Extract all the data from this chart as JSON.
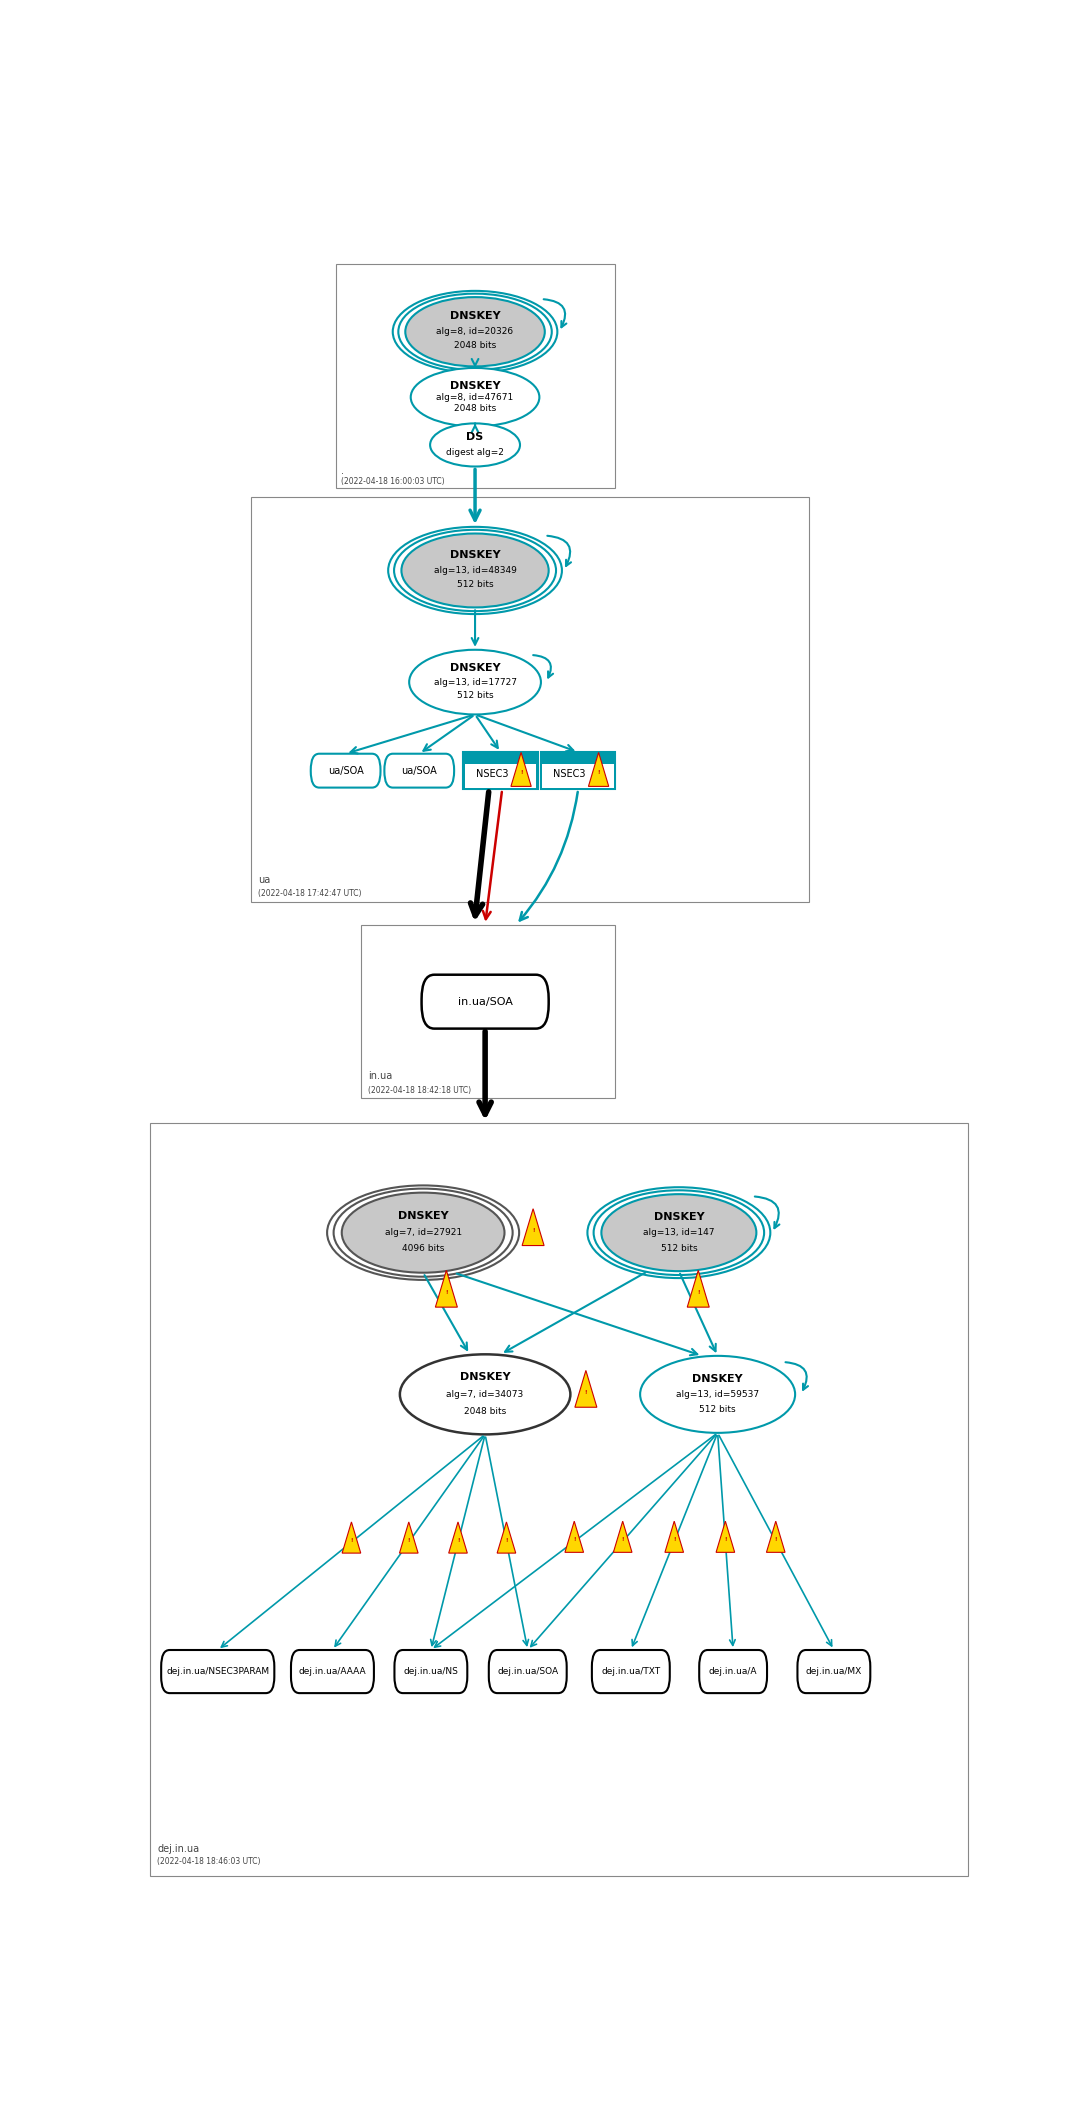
{
  "fig_width": 10.91,
  "fig_height": 21.23,
  "dpi": 100,
  "bg_color": "#ffffff",
  "teal": "#0099AA",
  "gray_fill": "#C8C8C8",
  "white_fill": "#ffffff",
  "red": "#CC0000",
  "black": "#000000",
  "zone_edge": "#888888",
  "zone1_time": "(2022-04-18 16:00:03 UTC)",
  "zone2_label": "ua",
  "zone2_time": "(2022-04-18 17:42:47 UTC)",
  "zone3_label": "in.ua",
  "zone3_time": "(2022-04-18 18:42:18 UTC)",
  "zone4_label": "dej.in.ua",
  "zone4_time": "(2022-04-18 18:46:03 UTC)"
}
